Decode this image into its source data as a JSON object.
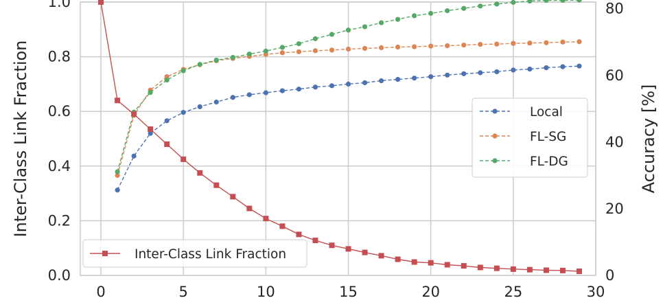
{
  "chart_data": {
    "type": "line",
    "x": [
      0,
      1,
      2,
      3,
      4,
      5,
      6,
      7,
      8,
      9,
      10,
      11,
      12,
      13,
      14,
      15,
      16,
      17,
      18,
      19,
      20,
      21,
      22,
      23,
      24,
      25,
      26,
      27,
      28,
      29
    ],
    "xlim": [
      -1.25,
      30
    ],
    "xticks": [
      0,
      5,
      10,
      15,
      20,
      25,
      30
    ],
    "grid": true,
    "left_axis": {
      "label": "Inter-Class Link Fraction",
      "ylim": [
        0,
        1.0
      ],
      "ticks": [
        "0.0",
        "0.2",
        "0.4",
        "0.6",
        "0.8",
        "1.0"
      ]
    },
    "right_axis": {
      "label": "Accuracy [%]",
      "ylim": [
        0,
        82
      ],
      "ticks": [
        "0",
        "20",
        "40",
        "60",
        "80"
      ]
    },
    "series": [
      {
        "name": "Inter-Class Link Fraction",
        "axis": "left",
        "color": "#c44e52",
        "marker": "square",
        "linestyle": "solid",
        "x": [
          0,
          1,
          2,
          3,
          4,
          5,
          6,
          7,
          8,
          9,
          10,
          11,
          12,
          13,
          14,
          15,
          16,
          17,
          18,
          19,
          20,
          21,
          22,
          23,
          24,
          25,
          26,
          27,
          28,
          29
        ],
        "values": [
          1.0,
          0.64,
          0.59,
          0.535,
          0.48,
          0.425,
          0.375,
          0.33,
          0.288,
          0.245,
          0.208,
          0.18,
          0.15,
          0.128,
          0.11,
          0.097,
          0.084,
          0.072,
          0.059,
          0.049,
          0.046,
          0.039,
          0.035,
          0.029,
          0.026,
          0.023,
          0.021,
          0.019,
          0.018,
          0.015
        ]
      },
      {
        "name": "Local",
        "axis": "right",
        "color": "#4c72b0",
        "marker": "circle",
        "linestyle": "dashed",
        "x": [
          1,
          2,
          3,
          4,
          5,
          6,
          7,
          8,
          9,
          10,
          11,
          12,
          13,
          14,
          15,
          16,
          17,
          18,
          19,
          20,
          21,
          22,
          23,
          24,
          25,
          26,
          27,
          28,
          29
        ],
        "values": [
          25.6,
          35.8,
          42.6,
          46.4,
          48.9,
          50.6,
          52.0,
          53.4,
          54.2,
          54.8,
          55.4,
          55.9,
          56.5,
          56.9,
          57.4,
          57.8,
          58.4,
          58.8,
          59.2,
          59.6,
          60.1,
          60.5,
          60.8,
          61.1,
          61.6,
          61.9,
          62.3,
          62.6,
          62.8
        ]
      },
      {
        "name": "FL-SG",
        "axis": "right",
        "color": "#dd8452",
        "marker": "circle",
        "linestyle": "dashed",
        "x": [
          1,
          2,
          3,
          4,
          5,
          6,
          7,
          8,
          9,
          10,
          11,
          12,
          13,
          14,
          15,
          16,
          17,
          18,
          19,
          20,
          21,
          22,
          23,
          24,
          25,
          26,
          27,
          28,
          29
        ],
        "values": [
          30.0,
          48.0,
          55.6,
          59.6,
          61.8,
          63.2,
          64.4,
          65.1,
          65.7,
          66.3,
          66.8,
          67.1,
          67.4,
          67.6,
          67.9,
          68.1,
          68.3,
          68.5,
          68.6,
          68.8,
          68.9,
          69.1,
          69.3,
          69.4,
          69.6,
          69.7,
          69.8,
          70.0,
          70.1
        ]
      },
      {
        "name": "FL-DG",
        "axis": "right",
        "color": "#55a868",
        "marker": "circle",
        "linestyle": "dashed",
        "x": [
          1,
          2,
          3,
          4,
          5,
          6,
          7,
          8,
          9,
          10,
          11,
          12,
          13,
          14,
          15,
          16,
          17,
          18,
          19,
          20,
          21,
          22,
          23,
          24,
          25,
          26,
          27,
          28,
          29
        ],
        "values": [
          31.1,
          49.0,
          54.9,
          58.6,
          61.4,
          63.3,
          64.6,
          65.4,
          66.4,
          67.3,
          68.4,
          69.5,
          71.0,
          72.3,
          73.6,
          74.6,
          75.8,
          76.8,
          77.9,
          78.6,
          79.4,
          80.1,
          80.8,
          81.4,
          81.9,
          82.3,
          82.5,
          82.5,
          82.6
        ]
      }
    ],
    "legends": [
      {
        "placement": "center-right",
        "entries": [
          "Local",
          "FL-SG",
          "FL-DG"
        ]
      },
      {
        "placement": "lower-left",
        "entries": [
          "Inter-Class Link Fraction"
        ]
      }
    ]
  }
}
